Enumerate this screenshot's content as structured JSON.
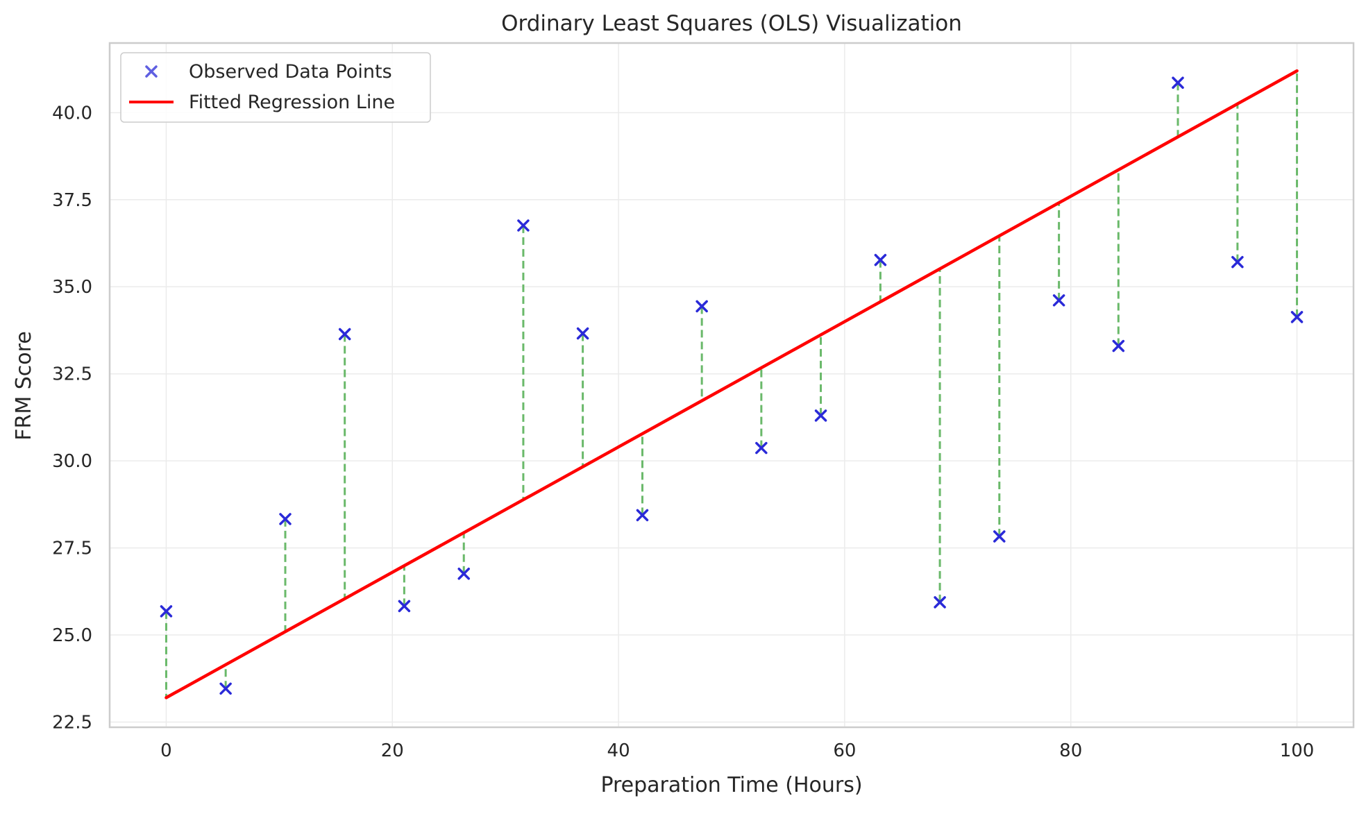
{
  "chart_data": {
    "type": "scatter",
    "title": "Ordinary Least Squares (OLS) Visualization",
    "xlabel": "Preparation Time (Hours)",
    "ylabel": "FRM Score",
    "xlim": [
      -5,
      105
    ],
    "ylim": [
      22.35,
      42.0
    ],
    "xticks": [
      0,
      20,
      40,
      60,
      80,
      100
    ],
    "xtick_labels": [
      "0",
      "20",
      "40",
      "60",
      "80",
      "100"
    ],
    "yticks": [
      22.5,
      25.0,
      27.5,
      30.0,
      32.5,
      35.0,
      37.5,
      40.0
    ],
    "ytick_labels": [
      "22.5",
      "25.0",
      "27.5",
      "30.0",
      "32.5",
      "35.0",
      "37.5",
      "40.0"
    ],
    "grid": true,
    "legend_position": "top-left",
    "series": [
      {
        "name": "Observed Data Points",
        "kind": "scatter",
        "marker": "x",
        "color": "#2a2ad8",
        "x": [
          0,
          5.26,
          10.53,
          15.79,
          21.05,
          26.32,
          31.58,
          36.84,
          42.11,
          47.37,
          52.63,
          57.89,
          63.16,
          68.42,
          73.68,
          78.95,
          84.21,
          89.47,
          94.74,
          100
        ],
        "y": [
          25.68,
          23.46,
          28.33,
          33.64,
          25.83,
          26.76,
          36.76,
          33.66,
          28.44,
          34.44,
          30.37,
          31.3,
          35.77,
          25.94,
          27.83,
          34.61,
          33.3,
          40.86,
          35.71,
          34.13
        ]
      },
      {
        "name": "Fitted Regression Line",
        "kind": "line",
        "color": "#ff0000",
        "x": [
          0,
          100
        ],
        "y": [
          23.2,
          41.2
        ]
      }
    ],
    "residual_color": "#6ab96a"
  }
}
